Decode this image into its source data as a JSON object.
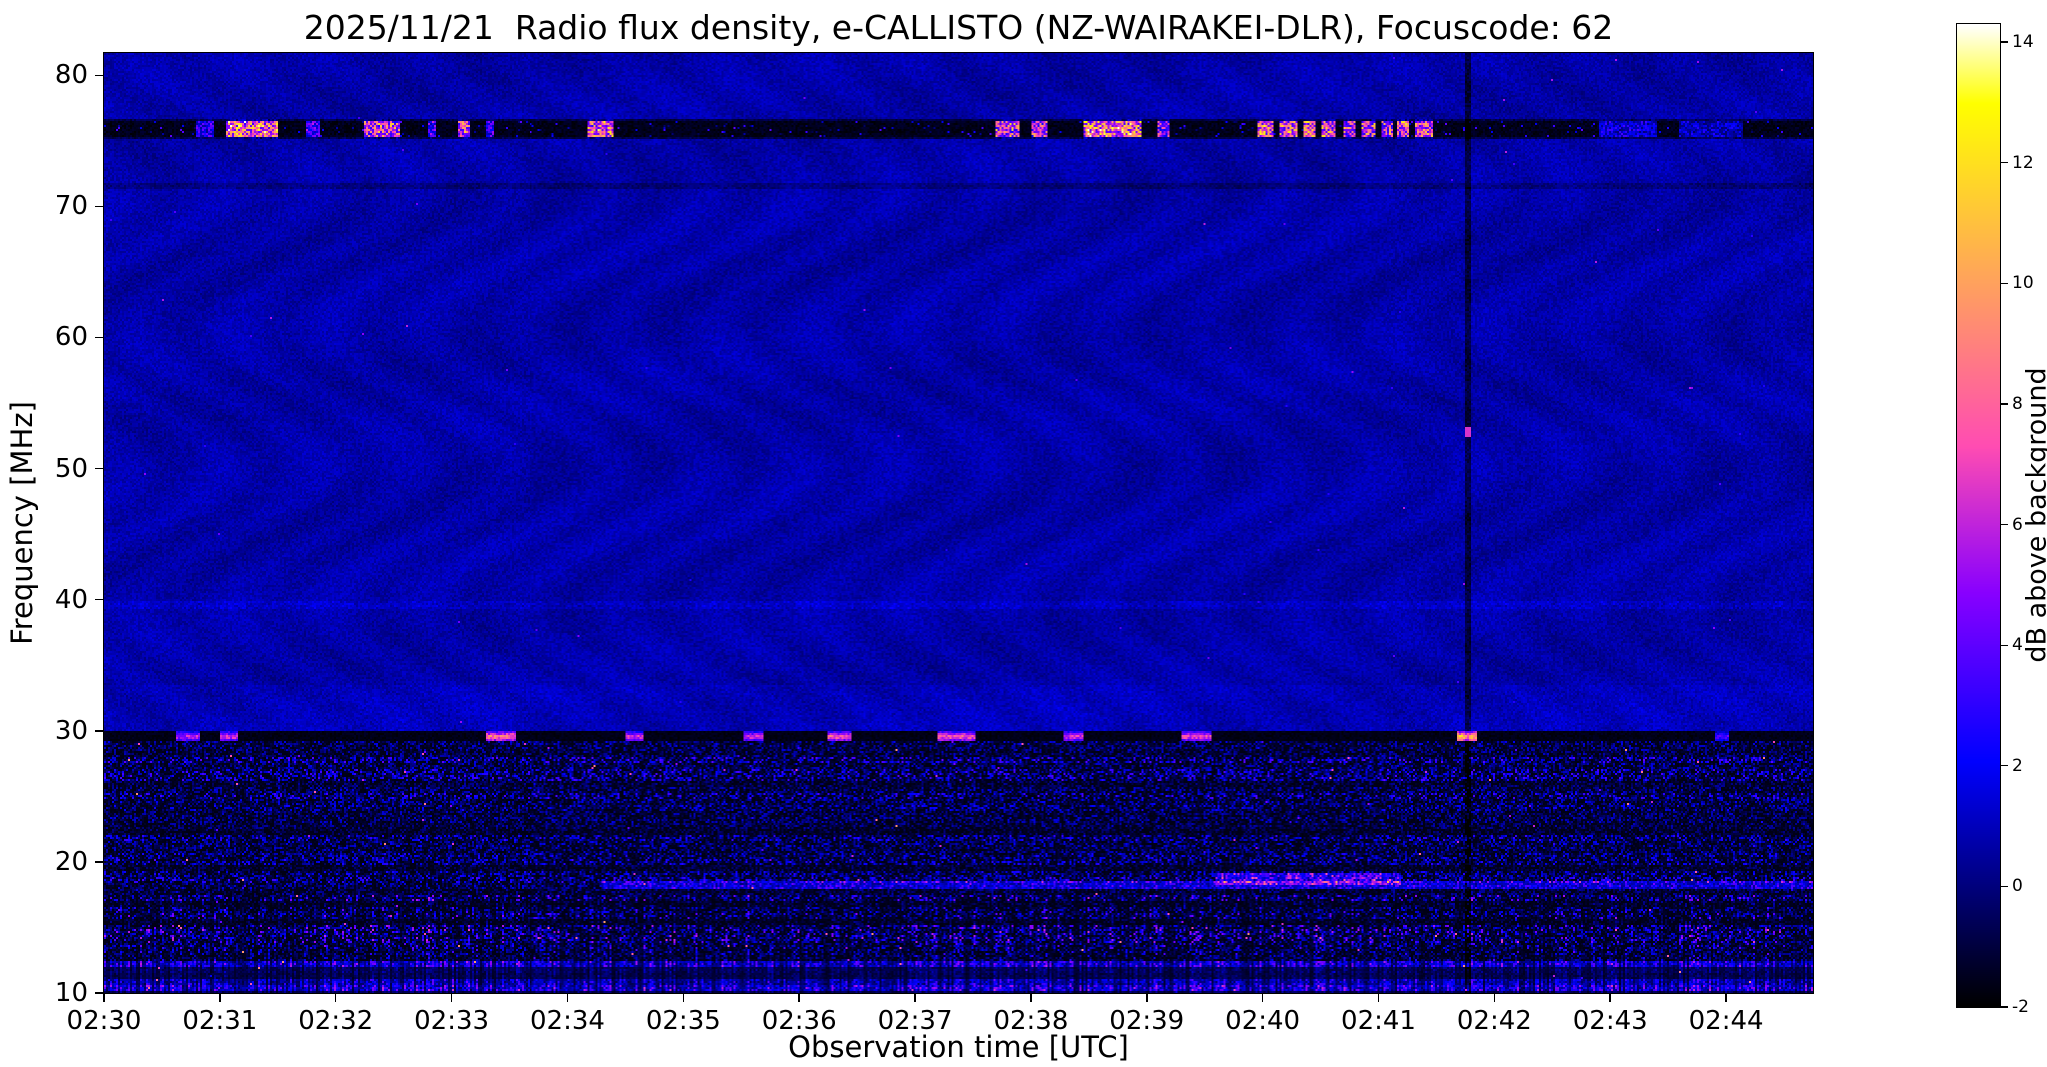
{
  "chart_data": {
    "type": "heatmap",
    "title": "2025/11/21  Radio flux density, e-CALLISTO (NZ-WAIRAKEI-DLR), Focuscode: 62",
    "xlabel": "Observation time [UTC]",
    "ylabel": "Frequency [MHz]",
    "x_tick_labels": [
      "02:30",
      "02:31",
      "02:32",
      "02:33",
      "02:34",
      "02:35",
      "02:36",
      "02:37",
      "02:38",
      "02:39",
      "02:40",
      "02:41",
      "02:42",
      "02:43",
      "02:44"
    ],
    "x_range_minutes_after_0230": [
      0,
      14.75
    ],
    "y_tick_labels": [
      80,
      70,
      60,
      50,
      40,
      30,
      20,
      10
    ],
    "y_range_mhz": [
      10,
      81.7
    ],
    "colormap": "gnuplot2",
    "grid": false,
    "colorbar": {
      "label": "dB above background",
      "tick_labels": [
        14,
        12,
        10,
        8,
        6,
        4,
        2,
        0,
        -2
      ],
      "vmin": -2,
      "vmax": 14.3
    },
    "quiet_background_level_db": 0.6,
    "features": {
      "rfi_band_75mhz": {
        "freq_range_mhz": [
          75.1,
          76.7
        ],
        "base_db": -2,
        "bursts_min_start_end_amp": [
          [
            0.8,
            0.95,
            0.45
          ],
          [
            1.05,
            1.5,
            1.0
          ],
          [
            1.75,
            1.87,
            0.5
          ],
          [
            2.25,
            2.56,
            0.85
          ],
          [
            2.8,
            2.87,
            0.5
          ],
          [
            3.05,
            3.16,
            0.9
          ],
          [
            3.3,
            3.36,
            0.45
          ],
          [
            4.18,
            4.4,
            0.95
          ],
          [
            7.7,
            7.9,
            0.85
          ],
          [
            8.0,
            8.15,
            0.8
          ],
          [
            8.45,
            8.95,
            1.0
          ],
          [
            9.1,
            9.2,
            0.7
          ],
          [
            9.95,
            10.1,
            0.95
          ],
          [
            10.15,
            10.3,
            0.9
          ],
          [
            10.35,
            10.45,
            0.9
          ],
          [
            10.5,
            10.62,
            0.9
          ],
          [
            10.7,
            10.8,
            0.85
          ],
          [
            10.85,
            10.97,
            0.85
          ],
          [
            11.02,
            11.12,
            0.85
          ],
          [
            11.17,
            11.27,
            0.9
          ],
          [
            11.32,
            11.47,
            0.9
          ],
          [
            12.9,
            13.4,
            0.35
          ],
          [
            13.6,
            14.15,
            0.3
          ]
        ]
      },
      "absorption_line_29mhz": {
        "freq_range_mhz": [
          29.15,
          29.95
        ],
        "base_db": -1.9,
        "bright_blobs_min_start_end_amp": [
          [
            0.62,
            0.82,
            0.55
          ],
          [
            1.0,
            1.16,
            0.6
          ],
          [
            3.3,
            3.56,
            0.75
          ],
          [
            4.5,
            4.66,
            0.6
          ],
          [
            5.52,
            5.7,
            0.6
          ],
          [
            6.25,
            6.46,
            0.7
          ],
          [
            7.2,
            7.52,
            0.7
          ],
          [
            8.28,
            8.46,
            0.6
          ],
          [
            9.3,
            9.56,
            0.65
          ],
          [
            11.68,
            11.86,
            0.95
          ],
          [
            13.9,
            14.02,
            0.4
          ]
        ]
      },
      "noise_below_29mhz": {
        "freq_range_mhz": [
          10,
          29.15
        ],
        "base_db": -1.7,
        "description": "dense speckled terrestrial interference: blue speckle bands with sparse pink/orange/yellow dots, vertical striations below 17.5 MHz"
      },
      "line_18mhz": {
        "freq_mhz": 18.25,
        "t_start_min": 4.3,
        "bright_segment_min": [
          9.6,
          11.2
        ]
      },
      "faint_bright_line_mhz": 39.6,
      "faint_dark_line_mhz": 71.6,
      "vertical_gap": {
        "t_min": 11.78,
        "bright_point_mhz": 52.8,
        "bright_point_db": 6.5
      }
    }
  }
}
